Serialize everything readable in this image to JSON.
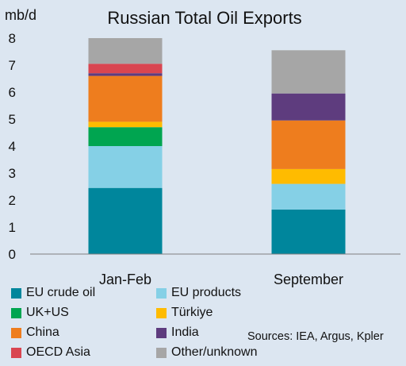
{
  "chart_data": {
    "type": "bar",
    "stacked": true,
    "title": "Russian Total Oil Exports",
    "ylabel": "mb/d",
    "xlabel": "",
    "ylim": [
      0,
      8
    ],
    "yticks": [
      0,
      1,
      2,
      3,
      4,
      5,
      6,
      7,
      8
    ],
    "grid": false,
    "legend_position": "bottom",
    "categories": [
      "Jan-Feb",
      "September"
    ],
    "series": [
      {
        "name": "EU crude oil",
        "color": "#00869c",
        "values": [
          2.45,
          1.65
        ]
      },
      {
        "name": "EU products",
        "color": "#85d0e6",
        "values": [
          1.55,
          0.95
        ]
      },
      {
        "name": "UK+US",
        "color": "#00a550",
        "values": [
          0.7,
          0.0
        ]
      },
      {
        "name": "Türkiye",
        "color": "#ffbb00",
        "values": [
          0.2,
          0.55
        ]
      },
      {
        "name": "China",
        "color": "#ee7d1e",
        "values": [
          1.7,
          1.8
        ]
      },
      {
        "name": "India",
        "color": "#5e3c7e",
        "values": [
          0.1,
          1.0
        ]
      },
      {
        "name": "OECD Asia",
        "color": "#d94550",
        "values": [
          0.35,
          0.0
        ]
      },
      {
        "name": "Other/unknown",
        "color": "#a6a6a6",
        "values": [
          0.95,
          1.6
        ]
      }
    ],
    "source": "Sources: IEA, Argus, Kpler"
  }
}
